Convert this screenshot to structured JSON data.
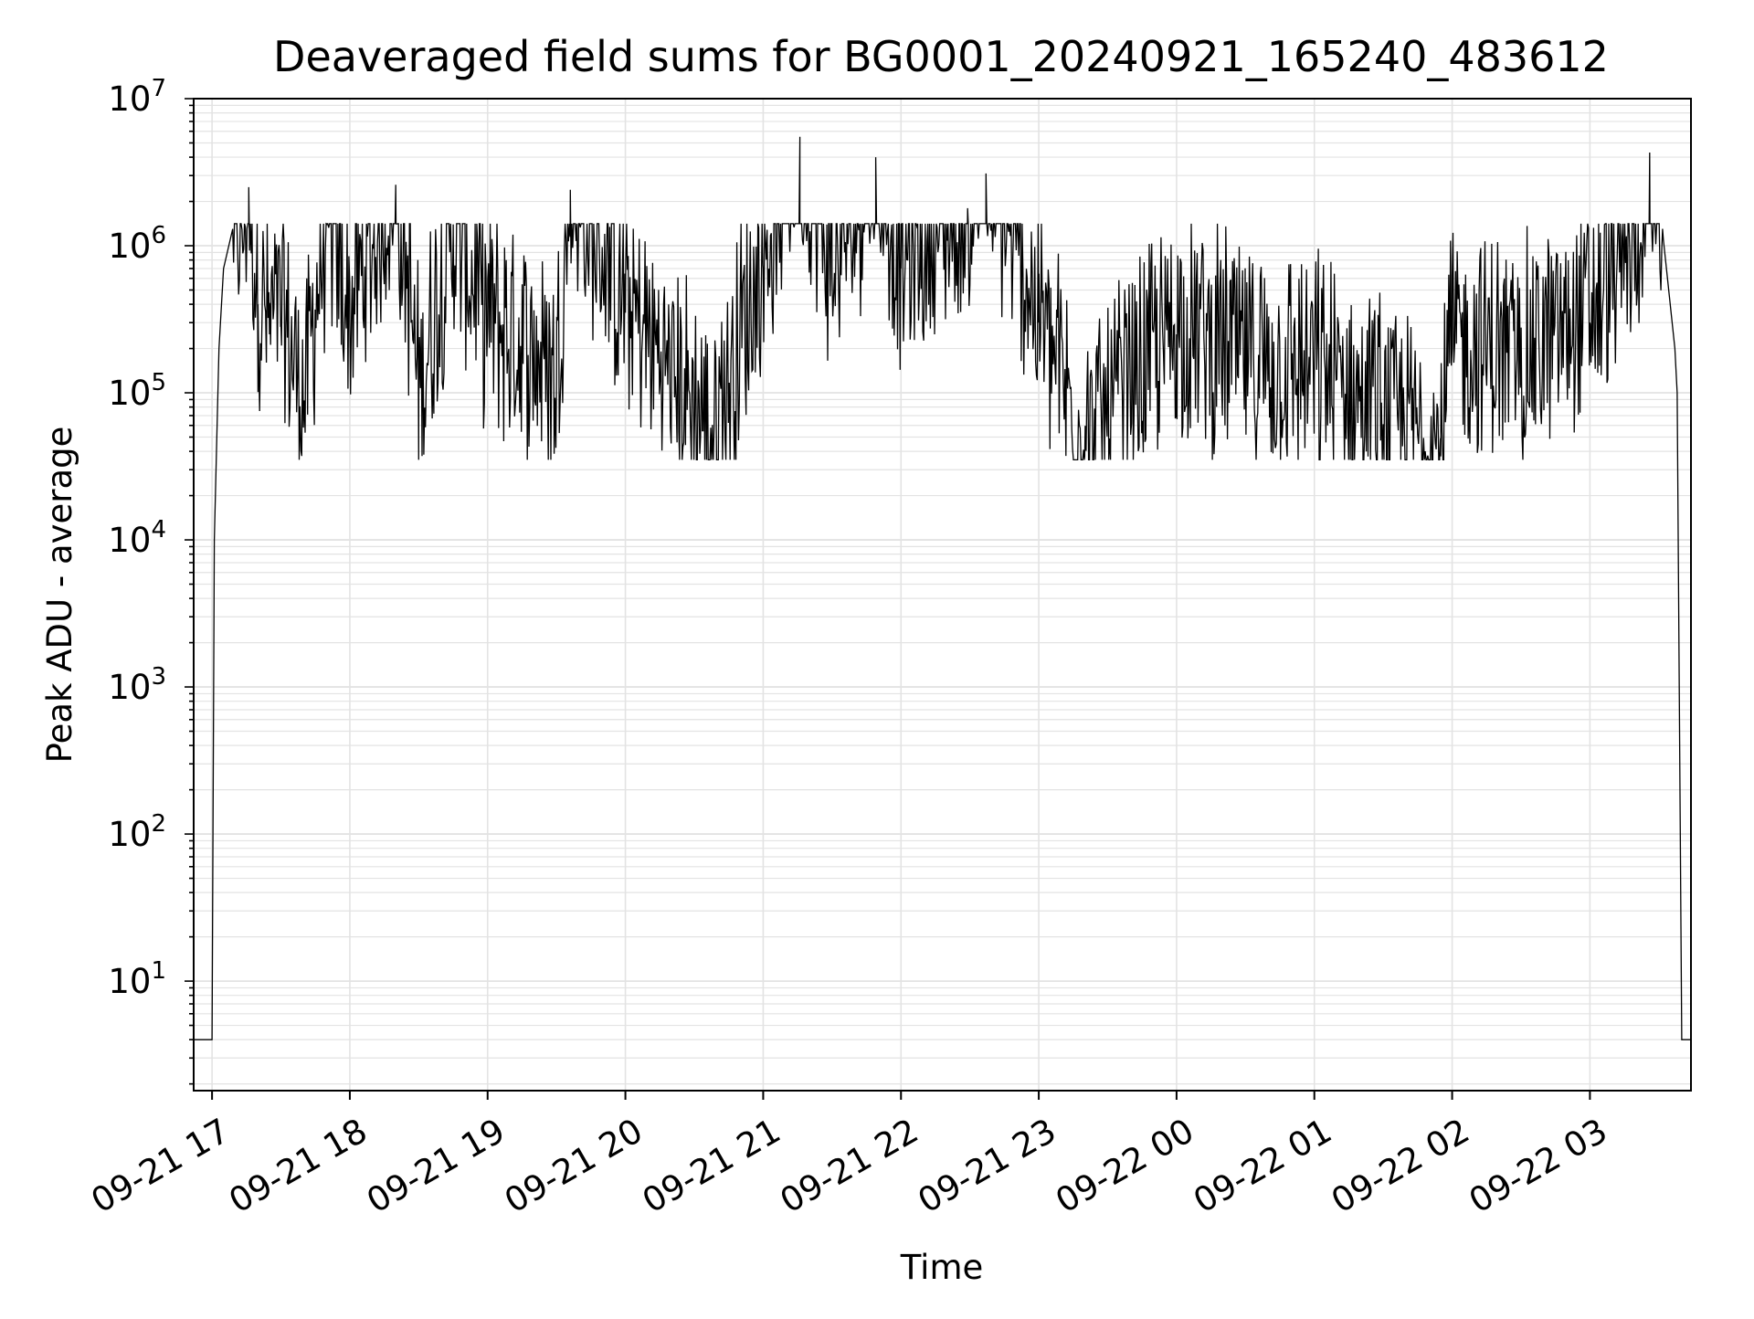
{
  "chart_data": {
    "type": "line",
    "title": "Deaveraged field sums for BG0001_20240921_165240_483612",
    "xlabel": "Time",
    "ylabel": "Peak ADU - average",
    "yscale": "log",
    "ylim": [
      1.8,
      10000000
    ],
    "xlim": [
      "2024-09-21 16:52",
      "2024-09-22 03:44"
    ],
    "grid": "major and minor",
    "line_color": "#000000",
    "grid_color": "#e3e3e3",
    "x_ticks": [
      {
        "t": "2024-09-21 17:00",
        "label": "09-21 17"
      },
      {
        "t": "2024-09-21 18:00",
        "label": "09-21 18"
      },
      {
        "t": "2024-09-21 19:00",
        "label": "09-21 19"
      },
      {
        "t": "2024-09-21 20:00",
        "label": "09-21 20"
      },
      {
        "t": "2024-09-21 21:00",
        "label": "09-21 21"
      },
      {
        "t": "2024-09-21 22:00",
        "label": "09-21 22"
      },
      {
        "t": "2024-09-21 23:00",
        "label": "09-21 23"
      },
      {
        "t": "2024-09-22 00:00",
        "label": "09-22 00"
      },
      {
        "t": "2024-09-22 01:00",
        "label": "09-22 01"
      },
      {
        "t": "2024-09-22 02:00",
        "label": "09-22 02"
      },
      {
        "t": "2024-09-22 03:00",
        "label": "09-22 03"
      }
    ],
    "y_ticks": [
      {
        "value": 10,
        "base": "10",
        "exp": "1"
      },
      {
        "value": 100,
        "base": "10",
        "exp": "2"
      },
      {
        "value": 1000,
        "base": "10",
        "exp": "3"
      },
      {
        "value": 10000,
        "base": "10",
        "exp": "4"
      },
      {
        "value": 100000,
        "base": "10",
        "exp": "5"
      },
      {
        "value": 1000000,
        "base": "10",
        "exp": "6"
      },
      {
        "value": 10000000,
        "base": "10",
        "exp": "7"
      }
    ],
    "series": [
      {
        "points": [
          [
            "2024-09-21 16:52",
            4
          ],
          [
            "2024-09-21 17:00",
            4
          ],
          [
            "2024-09-21 17:01",
            10000
          ],
          [
            "2024-09-21 17:03",
            200000
          ],
          [
            "2024-09-21 17:05",
            700000
          ],
          [
            "2024-09-21 17:09",
            1300000
          ],
          [
            "2024-09-21 17:14",
            1200000
          ],
          [
            "2024-09-21 17:16",
            2500000
          ],
          [
            "2024-09-21 17:20",
            400000
          ],
          [
            "2024-09-21 17:25",
            250000
          ],
          [
            "2024-09-21 17:30",
            300000
          ],
          [
            "2024-09-21 17:40",
            80000
          ],
          [
            "2024-09-21 17:50",
            1400000
          ],
          [
            "2024-09-21 18:00",
            300000
          ],
          [
            "2024-09-21 18:20",
            2600000
          ],
          [
            "2024-09-21 18:30",
            90000
          ],
          [
            "2024-09-21 18:45",
            1200000
          ],
          [
            "2024-09-21 19:00",
            280000
          ],
          [
            "2024-09-21 19:30",
            120000
          ],
          [
            "2024-09-21 19:36",
            2400000
          ],
          [
            "2024-09-21 20:00",
            350000
          ],
          [
            "2024-09-21 20:38",
            45000
          ],
          [
            "2024-09-21 21:00",
            700000
          ],
          [
            "2024-09-21 21:16",
            5500000
          ],
          [
            "2024-09-21 21:30",
            600000
          ],
          [
            "2024-09-21 21:49",
            4000000
          ],
          [
            "2024-09-21 22:00",
            700000
          ],
          [
            "2024-09-21 22:29",
            1800000
          ],
          [
            "2024-09-21 22:37",
            3100000
          ],
          [
            "2024-09-21 23:00",
            300000
          ],
          [
            "2024-09-21 23:20",
            37000
          ],
          [
            "2024-09-22 00:00",
            250000
          ],
          [
            "2024-09-22 00:30",
            150000
          ],
          [
            "2024-09-22 01:00",
            120000
          ],
          [
            "2024-09-22 01:55",
            37000
          ],
          [
            "2024-09-22 02:00",
            200000
          ],
          [
            "2024-09-22 02:30",
            150000
          ],
          [
            "2024-09-22 03:00",
            300000
          ],
          [
            "2024-09-22 03:20",
            900000
          ],
          [
            "2024-09-22 03:26",
            4300000
          ],
          [
            "2024-09-22 03:32",
            1100000
          ],
          [
            "2024-09-22 03:37",
            200000
          ],
          [
            "2024-09-22 03:38",
            100000
          ],
          [
            "2024-09-22 03:40",
            4
          ],
          [
            "2024-09-22 03:44",
            4
          ]
        ]
      }
    ]
  }
}
